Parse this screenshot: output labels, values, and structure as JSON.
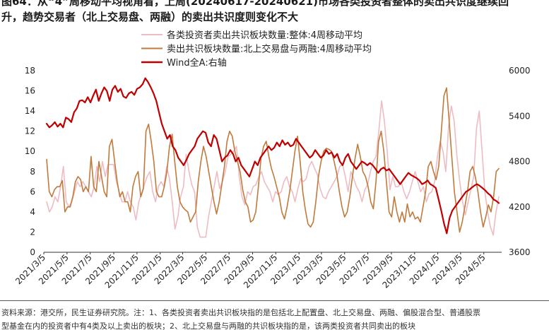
{
  "header": {
    "title_line1": "图64：从“4”周移动平均视角看，上周(20240617-20240621)市场各类投资者整体的卖出共识度继续回",
    "title_line2": "升，趋势交易者（北上交易盘、两融）的卖出共识度则变化不大"
  },
  "footer": {
    "source_line1": "资料来源：港交所，民生证券研究院。注：1、各类投资者卖出共识板块指的是包括北上配置盘、北上交易盘、两融、偏股混合型、普通股票",
    "source_line2": "型基金在内的投资者中有4类及以上卖出的板块；2、北上交易盘与两融的共识板块指的是，该两类投资者共同卖出的板块"
  },
  "colors": {
    "pink": "#eebcc2",
    "brown": "#c07a3c",
    "red": "#c00000",
    "axis": "#333333"
  },
  "chart_data": {
    "type": "line",
    "title": "",
    "x_start": "2021/3/5",
    "x_end": "2024/6/21",
    "x_ticks": [
      "2021/3/5",
      "2021/5/5",
      "2021/7/5",
      "2021/9/5",
      "2021/11/5",
      "2022/1/5",
      "2022/3/5",
      "2022/5/5",
      "2022/7/5",
      "2022/9/5",
      "2022/11/5",
      "2023/1/5",
      "2023/3/5",
      "2023/5/5",
      "2023/7/5",
      "2023/9/5",
      "2023/11/5",
      "2024/1/5",
      "2024/3/5",
      "2024/5/5"
    ],
    "y_left": {
      "min": 0,
      "max": 18,
      "step": 2,
      "ticks": [
        "0",
        "2",
        "4",
        "6",
        "8",
        "10",
        "12",
        "14",
        "16",
        "18"
      ]
    },
    "y_right": {
      "min": 3600,
      "max": 6000,
      "step": 600,
      "ticks": [
        "3600",
        "4200",
        "4800",
        "5400",
        "6000"
      ]
    },
    "legend": {
      "position": "top-center"
    },
    "series": [
      {
        "name": "各类投资者卖出共识板块数量:整体:4周移动平均",
        "axis": "left",
        "color_key": "pink",
        "width": 1.6,
        "values": [
          5,
          4,
          4.5,
          5.5,
          5,
          6.5,
          8.5,
          5,
          4.5,
          5,
          6,
          7,
          6.5,
          7,
          6.5,
          6,
          5.5,
          6.5,
          8.5,
          7,
          9,
          7.5,
          8.7,
          8.7,
          8.7,
          7,
          6,
          5,
          5,
          6,
          5,
          4.5,
          3.2,
          5,
          5.8,
          6.7,
          7.5,
          8,
          6,
          5,
          6.5,
          7,
          6.5,
          8.5,
          7.3,
          5,
          2.3,
          3.5,
          5.5,
          6.5,
          9.7,
          8,
          6.7,
          6,
          2.5,
          1.5,
          1.5,
          1.5,
          3.5,
          5,
          6.5,
          8,
          6.3,
          7,
          8,
          9.5,
          9.7,
          10,
          10.5,
          7.5,
          5.5,
          4.7,
          6,
          5.7,
          6.5,
          6.7,
          7.5,
          8,
          7,
          6.5,
          6,
          5,
          6,
          5.7,
          6,
          7,
          7.5,
          6.5,
          6,
          5,
          6.3,
          7.3,
          7,
          7.3,
          8.5,
          9,
          8.3,
          7.7,
          6.3,
          5.5,
          5.3,
          6,
          6.5,
          7,
          7.5,
          8.5,
          8.7,
          7.5,
          6,
          8,
          7.3,
          6.5,
          6,
          5,
          6.2,
          6.7,
          8,
          9,
          9.5,
          12,
          15,
          13,
          10,
          6.2,
          7.5,
          6.5,
          6.5,
          7,
          6,
          5.3,
          6,
          7,
          8,
          7,
          6,
          6.5,
          5,
          5.8,
          6,
          7,
          9.5,
          11,
          10,
          8,
          12.5,
          14.5,
          13,
          9.5,
          7,
          5,
          3.7,
          5,
          6.2,
          7.5,
          12.3,
          14,
          10,
          6,
          4,
          2.5,
          1.7,
          4,
          5.5
        ]
      },
      {
        "name": "卖出共识板块数量:北上交易盘与两融:4周移动平均",
        "axis": "left",
        "color_key": "brown",
        "width": 1.6,
        "values": [
          9.2,
          6,
          5.5,
          6.2,
          6.5,
          6.5,
          7.1,
          4,
          4.5,
          4.5,
          5.5,
          7,
          7.5,
          7.2,
          6,
          6.5,
          6,
          9.5,
          6.5,
          6,
          9,
          7.5,
          6,
          5.5,
          10.5,
          11.2,
          9,
          7,
          5.5,
          6,
          5,
          5,
          4,
          6.5,
          7.5,
          8,
          5.5,
          6.3,
          12,
          12.7,
          11,
          9,
          6,
          5.5,
          5.5,
          6.5,
          8,
          10.5,
          11.7,
          9,
          6.5,
          5,
          4.5,
          4.2,
          4,
          3,
          3.5,
          4,
          7,
          9,
          10.5,
          9.5,
          8,
          6.5,
          5,
          3.8,
          5,
          6.7,
          8.5,
          11,
          12,
          11.5,
          10,
          9,
          8,
          6.2,
          5,
          4.5,
          3,
          3.2,
          4,
          6.5,
          9.3,
          10.5,
          11,
          9.5,
          8.3,
          7.5,
          6.5,
          5.5,
          4,
          3.3,
          4.5,
          6,
          8,
          10,
          11.5,
          9,
          6,
          4.2,
          2.8,
          2.5,
          3,
          5,
          7.5,
          9,
          10,
          10.3,
          10.2,
          10,
          9,
          7.8,
          6,
          4.5,
          3.5,
          4,
          5.5,
          7.5,
          9.3,
          10.7,
          9.5,
          8,
          7.5,
          6.5,
          5,
          4.3,
          7,
          11,
          12,
          10,
          7,
          4,
          3.5,
          5.5,
          4,
          3,
          4,
          3,
          4.8,
          3.5,
          4,
          3.3,
          3.5,
          3,
          4.5,
          6,
          8.5,
          9,
          8,
          7.2,
          8.5,
          12,
          15.5,
          16.3,
          13,
          9.5,
          6,
          4,
          2,
          3,
          4.5,
          6,
          8,
          8.5,
          7.5,
          6,
          4,
          2.5,
          3.5,
          4.7,
          4,
          5.5,
          8,
          8.3
        ]
      },
      {
        "name": "Wind全A:右轴",
        "axis": "right",
        "color_key": "red",
        "width": 2.2,
        "values": [
          5300,
          5250,
          5280,
          5320,
          5260,
          5300,
          5250,
          5380,
          5360,
          5320,
          5450,
          5500,
          5600,
          5610,
          5580,
          5650,
          5580,
          5670,
          5750,
          5600,
          5700,
          5780,
          5730,
          5600,
          5750,
          5800,
          5720,
          5760,
          5660,
          5640,
          5700,
          5720,
          5680,
          5760,
          5780,
          5820,
          5900,
          5850,
          5780,
          5700,
          5600,
          5450,
          5300,
          5200,
          5100,
          5150,
          5000,
          4950,
          4850,
          4800,
          4750,
          4820,
          4900,
          4950,
          5000,
          5100,
          5150,
          5200,
          5180,
          5050,
          5000,
          5150,
          5100,
          4950,
          4800,
          4850,
          4880,
          4950,
          4900,
          4800,
          4850,
          4750,
          4700,
          4650,
          4600,
          4700,
          4800,
          4750,
          4850,
          4900,
          4950,
          5000,
          4950,
          4980,
          5050,
          5000,
          5080,
          5020,
          5050,
          5000,
          5020,
          5100,
          5050,
          5000,
          4950,
          4900,
          4850,
          4880,
          4950,
          4900,
          4850,
          4880,
          4950,
          4900,
          4920,
          4850,
          4900,
          4800,
          4750,
          4850,
          4900,
          4800,
          4750,
          4700,
          4750,
          4800,
          4780,
          4750,
          4780,
          4750,
          4700,
          4650,
          4700,
          4720,
          4680,
          4700,
          4650,
          4600,
          4550,
          4500,
          4550,
          4600,
          4650,
          4620,
          4600,
          4580,
          4550,
          4500,
          4520,
          4550,
          4500,
          4480,
          4450,
          4300,
          4150,
          3980,
          3850,
          4050,
          4150,
          4200,
          4250,
          4300,
          4350,
          4400,
          4420,
          4450,
          4480,
          4500,
          4480,
          4450,
          4420,
          4380,
          4350,
          4300,
          4280,
          4250
        ]
      }
    ]
  }
}
